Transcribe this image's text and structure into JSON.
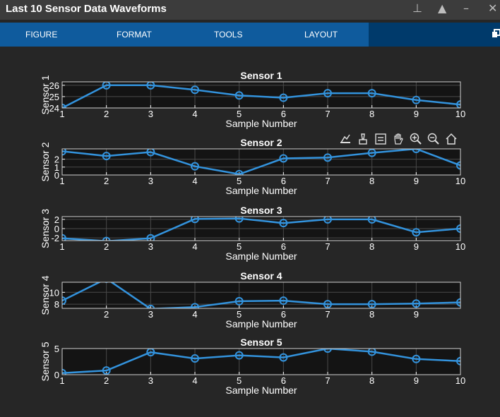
{
  "window": {
    "title": "Last 10 Sensor Data Waveforms"
  },
  "menu": {
    "items": [
      "FIGURE",
      "FORMAT",
      "TOOLS",
      "LAYOUT"
    ]
  },
  "axes_toolbar": [
    "export-icon",
    "brush-icon",
    "datatip-icon",
    "pan-icon",
    "zoom-in-icon",
    "zoom-out-icon",
    "home-icon"
  ],
  "colors": {
    "line": "#3393dd",
    "axes_bg": "#141414",
    "grid": "#4a4a4a",
    "text": "#ffffff",
    "menubar": "#0f5b9d"
  },
  "chart_data": [
    {
      "type": "line",
      "title": "Sensor 1",
      "xlabel": "Sample Number",
      "ylabel": "Sensor 1",
      "x": [
        1,
        2,
        3,
        4,
        5,
        6,
        7,
        8,
        9,
        10
      ],
      "values": [
        24.0,
        26.0,
        26.0,
        25.6,
        25.1,
        24.9,
        25.3,
        25.3,
        24.7,
        24.3
      ],
      "xlim": [
        1,
        10
      ],
      "ylim": [
        24,
        26.3
      ],
      "yticks": [
        24,
        25,
        26
      ],
      "xticks": [
        1,
        2,
        3,
        4,
        5,
        6,
        7,
        8,
        9,
        10
      ],
      "grid": true
    },
    {
      "type": "line",
      "title": "Sensor 2",
      "xlabel": "Sample Number",
      "ylabel": "Sensor 2",
      "x": [
        1,
        2,
        3,
        4,
        5,
        6,
        7,
        8,
        9,
        10
      ],
      "values": [
        3.0,
        2.4,
        2.9,
        1.1,
        0.1,
        2.1,
        2.2,
        2.8,
        3.3,
        1.2
      ],
      "xlim": [
        1,
        10
      ],
      "ylim": [
        0,
        3.3
      ],
      "yticks": [
        0,
        1,
        2
      ],
      "xticks": [
        1,
        2,
        3,
        4,
        5,
        6,
        7,
        8,
        9,
        10
      ],
      "grid": true
    },
    {
      "type": "line",
      "title": "Sensor 3",
      "xlabel": "Sample Number",
      "ylabel": "Sensor 3",
      "x": [
        1,
        2,
        3,
        4,
        5,
        6,
        7,
        8,
        9,
        10
      ],
      "values": [
        -2.1,
        -2.7,
        -2.1,
        2.1,
        2.2,
        1.2,
        2.0,
        2.0,
        -0.8,
        0.0
      ],
      "xlim": [
        1,
        10
      ],
      "ylim": [
        -2.6,
        2.6
      ],
      "yticks": [
        -2,
        0,
        2
      ],
      "xticks": [
        1,
        2,
        3,
        4,
        5,
        6,
        7,
        8,
        9,
        10
      ],
      "grid": true
    },
    {
      "type": "line",
      "title": "Sensor 4",
      "xlabel": "Sample Number",
      "ylabel": "Sensor 4",
      "x": [
        1,
        2,
        3,
        4,
        5,
        6,
        7,
        8,
        9,
        10
      ],
      "values": [
        8.6,
        12.3,
        7.2,
        7.5,
        8.5,
        8.6,
        8.0,
        8.0,
        8.1,
        8.3
      ],
      "xlim": [
        1,
        10
      ],
      "ylim": [
        7.3,
        11.7
      ],
      "yticks": [
        8,
        10
      ],
      "xticks": [
        2,
        3,
        4,
        5,
        6,
        7,
        8,
        9
      ],
      "grid": true
    },
    {
      "type": "line",
      "title": "Sensor 5",
      "xlabel": "Sample Number",
      "ylabel": "Sensor 5",
      "x": [
        1,
        2,
        3,
        4,
        5,
        6,
        7,
        8,
        9,
        10
      ],
      "values": [
        0.3,
        0.8,
        4.3,
        3.1,
        3.7,
        3.3,
        5.0,
        4.4,
        3.0,
        2.6
      ],
      "xlim": [
        1,
        10
      ],
      "ylim": [
        0,
        5
      ],
      "yticks": [
        0,
        5
      ],
      "xticks": [
        1,
        2,
        3,
        4,
        5,
        6,
        7,
        8,
        9,
        10
      ],
      "grid": true
    }
  ]
}
